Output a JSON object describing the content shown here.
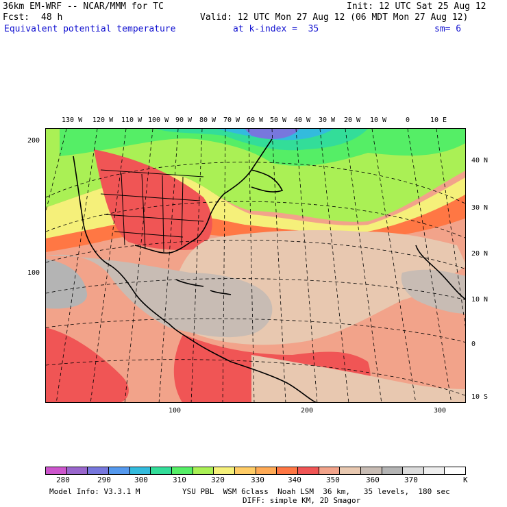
{
  "header": {
    "model": "36km EM-WRF -- NCAR/MMM for TC",
    "init": "Init: 12 UTC Sat 25 Aug 12",
    "fcst_label": "Fcst:",
    "fcst_value": "48 h",
    "valid": "Valid: 12 UTC Mon 27 Aug 12 (06 MDT Mon 27 Aug 12)",
    "field": "Equivalent potential temperature",
    "level": "at k-index =  35",
    "smoothing": "sm= 6"
  },
  "map": {
    "lon_labels": [
      "130 W",
      "120 W",
      "110 W",
      "100 W",
      "90 W",
      "80 W",
      "70 W",
      "60 W",
      "50 W",
      "40 W",
      "30 W",
      "20 W",
      "10 W",
      "0",
      "10 E"
    ],
    "lat_labels": [
      "40 N",
      "30 N",
      "20 N",
      "10 N",
      "0",
      "10 S"
    ],
    "grid_y_labels": [
      "200",
      "100"
    ],
    "grid_x_labels": [
      "100",
      "200",
      "300"
    ]
  },
  "colorbar": {
    "colors": [
      "#cc55cc",
      "#9966cc",
      "#7777dd",
      "#5599ee",
      "#33bbdd",
      "#33dd99",
      "#55ee66",
      "#aaf055",
      "#f5f07a",
      "#ffcc66",
      "#ffaa55",
      "#ff7744",
      "#f05555",
      "#f2a38a",
      "#e8c8b0",
      "#c8bcb4",
      "#b4b4b4",
      "#dcdcdc",
      "#eeeeee",
      "#ffffff"
    ],
    "labels": [
      "280",
      "290",
      "300",
      "310",
      "320",
      "330",
      "340",
      "350",
      "360",
      "370"
    ],
    "unit": "K"
  },
  "footer": {
    "model_info": "Model Info: V3.3.1 M",
    "physics": "YSU PBL  WSM 6class  Noah LSM  36 km,   35 levels,  180 sec",
    "diffusion": "DIFF: simple KM, 2D Smagor"
  }
}
